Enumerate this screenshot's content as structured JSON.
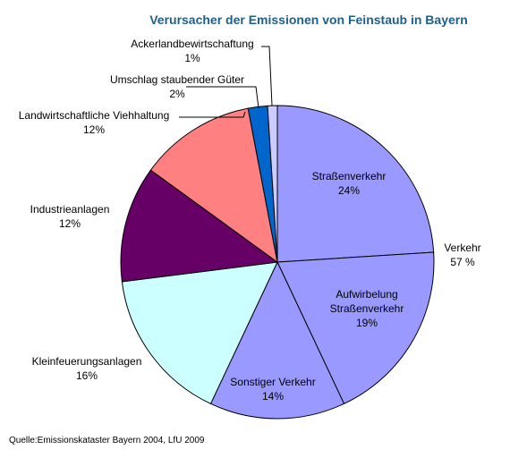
{
  "chart_data": {
    "type": "pie",
    "title": "Verursacher der Emissionen von Feinstaub in Bayern",
    "categories": [
      "Straßenverkehr",
      "Aufwirbelung Straßenverkehr",
      "Sonstiger Verkehr",
      "Kleinfeuerungsanlagen",
      "Industrieanlagen",
      "Landwirtschaftliche Viehhaltung",
      "Umschlag staubender Güter",
      "Ackerlandbewirtschaftung"
    ],
    "values": [
      24,
      19,
      14,
      16,
      12,
      12,
      2,
      1
    ],
    "value_labels": [
      "24%",
      "19%",
      "14%",
      "16%",
      "12%",
      "12%",
      "2%",
      "1%"
    ],
    "colors": [
      "#9999ff",
      "#9999ff",
      "#9999ff",
      "#ccffff",
      "#660066",
      "#ff8080",
      "#0066cc",
      "#ccccff"
    ],
    "annotations": [
      "Verkehr",
      "57 %"
    ],
    "source": "Quelle:Emissionskataster Bayern 2004, LfU 2009"
  }
}
